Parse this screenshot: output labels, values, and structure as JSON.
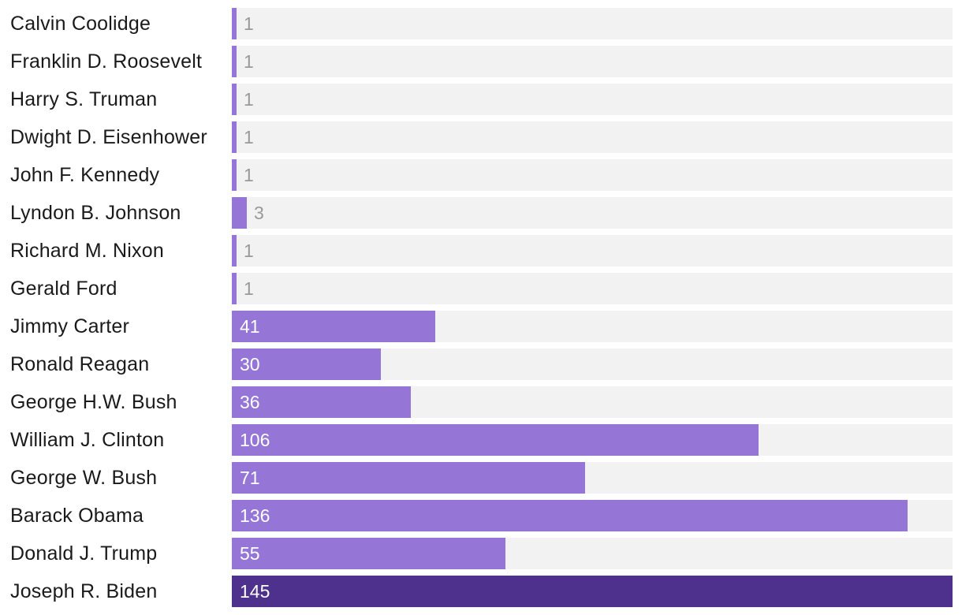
{
  "chart_data": {
    "type": "bar",
    "orientation": "horizontal",
    "title": "",
    "xlabel": "",
    "ylabel": "",
    "xlim": [
      0,
      145
    ],
    "categories": [
      "Calvin Coolidge",
      "Franklin D. Roosevelt",
      "Harry S. Truman",
      "Dwight D. Eisenhower",
      "John F. Kennedy",
      "Lyndon B. Johnson",
      "Richard M. Nixon",
      "Gerald Ford",
      "Jimmy Carter",
      "Ronald Reagan",
      "George H.W. Bush",
      "William J. Clinton",
      "George W. Bush",
      "Barack Obama",
      "Donald J. Trump",
      "Joseph R. Biden"
    ],
    "values": [
      1,
      1,
      1,
      1,
      1,
      3,
      1,
      1,
      41,
      30,
      36,
      106,
      71,
      136,
      55,
      145
    ],
    "highlight_index": 15
  },
  "colors": {
    "bar": "#9575d6",
    "highlight": "#4e318c",
    "track": "#f2f2f2",
    "value_outside": "#999999",
    "value_inside": "#ffffff",
    "label": "#1a1a1a"
  }
}
